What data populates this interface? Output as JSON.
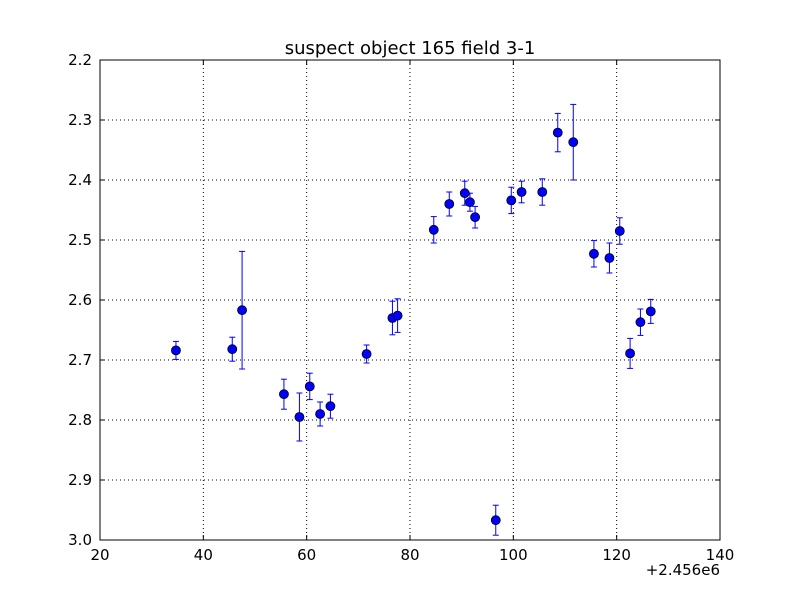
{
  "chart_data": {
    "type": "scatter",
    "title": "suspect object 165 field 3-1",
    "xlabel": "",
    "ylabel": "",
    "x_offset_label": "+2.456e6",
    "xlim": [
      20,
      140
    ],
    "ylim": [
      2.2,
      3.0
    ],
    "y_inverted": true,
    "grid": true,
    "legend": "none",
    "x_ticks": [
      20,
      40,
      60,
      80,
      100,
      120,
      140
    ],
    "x_tick_labels": [
      "20",
      "40",
      "60",
      "80",
      "100",
      "120",
      "140"
    ],
    "y_ticks": [
      2.2,
      2.3,
      2.4,
      2.5,
      2.6,
      2.7,
      2.8,
      2.9,
      3.0
    ],
    "y_tick_labels": [
      "2.2",
      "2.3",
      "2.4",
      "2.5",
      "2.6",
      "2.7",
      "2.8",
      "2.9",
      "3.0"
    ],
    "marker_color": "#0000ff",
    "points": [
      {
        "x": 34.7,
        "y": 2.684,
        "err": 0.015
      },
      {
        "x": 45.6,
        "y": 2.682,
        "err": 0.02
      },
      {
        "x": 47.5,
        "y": 2.617,
        "err": 0.098
      },
      {
        "x": 55.6,
        "y": 2.757,
        "err": 0.025
      },
      {
        "x": 58.6,
        "y": 2.795,
        "err": 0.04
      },
      {
        "x": 60.6,
        "y": 2.744,
        "err": 0.022
      },
      {
        "x": 62.6,
        "y": 2.79,
        "err": 0.02
      },
      {
        "x": 64.6,
        "y": 2.777,
        "err": 0.02
      },
      {
        "x": 71.6,
        "y": 2.69,
        "err": 0.015
      },
      {
        "x": 76.6,
        "y": 2.63,
        "err": 0.028
      },
      {
        "x": 77.6,
        "y": 2.626,
        "err": 0.028
      },
      {
        "x": 84.6,
        "y": 2.483,
        "err": 0.022
      },
      {
        "x": 87.6,
        "y": 2.44,
        "err": 0.02
      },
      {
        "x": 90.6,
        "y": 2.422,
        "err": 0.02
      },
      {
        "x": 91.6,
        "y": 2.437,
        "err": 0.015
      },
      {
        "x": 92.6,
        "y": 2.462,
        "err": 0.018
      },
      {
        "x": 96.6,
        "y": 2.967,
        "err": 0.025
      },
      {
        "x": 99.6,
        "y": 2.434,
        "err": 0.022
      },
      {
        "x": 101.6,
        "y": 2.42,
        "err": 0.018
      },
      {
        "x": 105.6,
        "y": 2.42,
        "err": 0.022
      },
      {
        "x": 108.6,
        "y": 2.321,
        "err": 0.032
      },
      {
        "x": 111.6,
        "y": 2.337,
        "err": 0.063
      },
      {
        "x": 115.6,
        "y": 2.523,
        "err": 0.022
      },
      {
        "x": 118.6,
        "y": 2.53,
        "err": 0.025
      },
      {
        "x": 120.6,
        "y": 2.485,
        "err": 0.022
      },
      {
        "x": 122.6,
        "y": 2.689,
        "err": 0.025
      },
      {
        "x": 124.6,
        "y": 2.637,
        "err": 0.022
      },
      {
        "x": 126.6,
        "y": 2.619,
        "err": 0.02
      }
    ]
  }
}
